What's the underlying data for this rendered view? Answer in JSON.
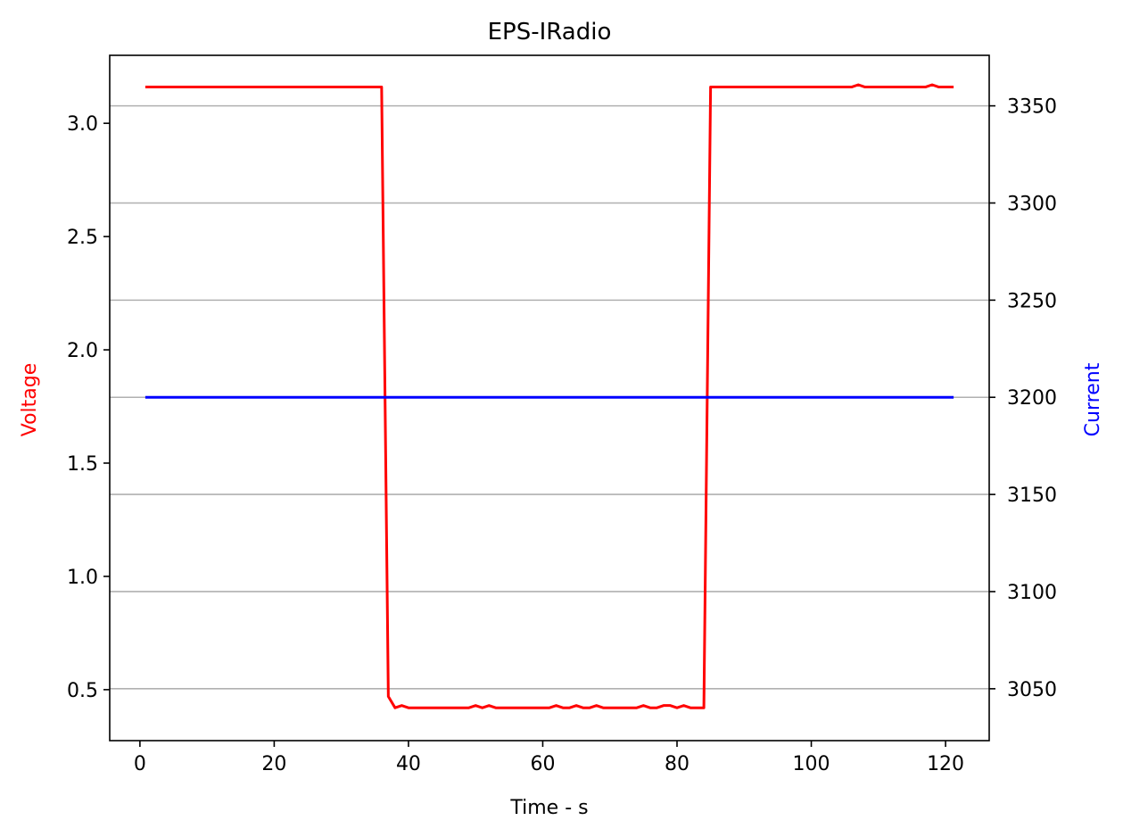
{
  "chart_data": {
    "type": "line",
    "title": "EPS-IRadio",
    "xlabel": "Time - s",
    "ylabel_left": "Voltage",
    "ylabel_right": "Current",
    "xlim": [
      -4.5,
      126.5
    ],
    "ylim_left": [
      0.275,
      3.3
    ],
    "ylim_right": [
      3023.3,
      3376.0
    ],
    "x_ticks": [
      0,
      20,
      40,
      60,
      80,
      100,
      120
    ],
    "y_ticks_left": [
      0.5,
      1.0,
      1.5,
      2.0,
      2.5,
      3.0
    ],
    "y_ticks_right": [
      3050,
      3100,
      3150,
      3200,
      3250,
      3300,
      3350
    ],
    "grid": "horizontal",
    "colors": {
      "voltage": "#ff0000",
      "current": "#0000ff",
      "grid": "#b0b0b0"
    },
    "series": [
      {
        "name": "Voltage",
        "axis": "left",
        "color": "#ff0000",
        "points": [
          [
            1,
            3.16
          ],
          [
            36,
            3.16
          ],
          [
            37,
            0.47
          ],
          [
            38,
            0.42
          ],
          [
            39,
            0.43
          ],
          [
            40,
            0.42
          ],
          [
            49,
            0.42
          ],
          [
            50,
            0.43
          ],
          [
            51,
            0.42
          ],
          [
            52,
            0.43
          ],
          [
            53,
            0.42
          ],
          [
            61,
            0.42
          ],
          [
            62,
            0.43
          ],
          [
            63,
            0.42
          ],
          [
            64,
            0.42
          ],
          [
            65,
            0.43
          ],
          [
            66,
            0.42
          ],
          [
            67,
            0.42
          ],
          [
            68,
            0.43
          ],
          [
            69,
            0.42
          ],
          [
            74,
            0.42
          ],
          [
            75,
            0.43
          ],
          [
            76,
            0.42
          ],
          [
            77,
            0.42
          ],
          [
            78,
            0.43
          ],
          [
            79,
            0.43
          ],
          [
            80,
            0.42
          ],
          [
            81,
            0.43
          ],
          [
            82,
            0.42
          ],
          [
            84,
            0.42
          ],
          [
            85,
            3.16
          ],
          [
            106,
            3.16
          ],
          [
            107,
            3.17
          ],
          [
            108,
            3.16
          ],
          [
            117,
            3.16
          ],
          [
            118,
            3.17
          ],
          [
            119,
            3.16
          ],
          [
            121,
            3.16
          ]
        ]
      },
      {
        "name": "Current",
        "axis": "right",
        "color": "#0000ff",
        "points": [
          [
            1,
            3200
          ],
          [
            121,
            3200
          ]
        ]
      }
    ]
  }
}
